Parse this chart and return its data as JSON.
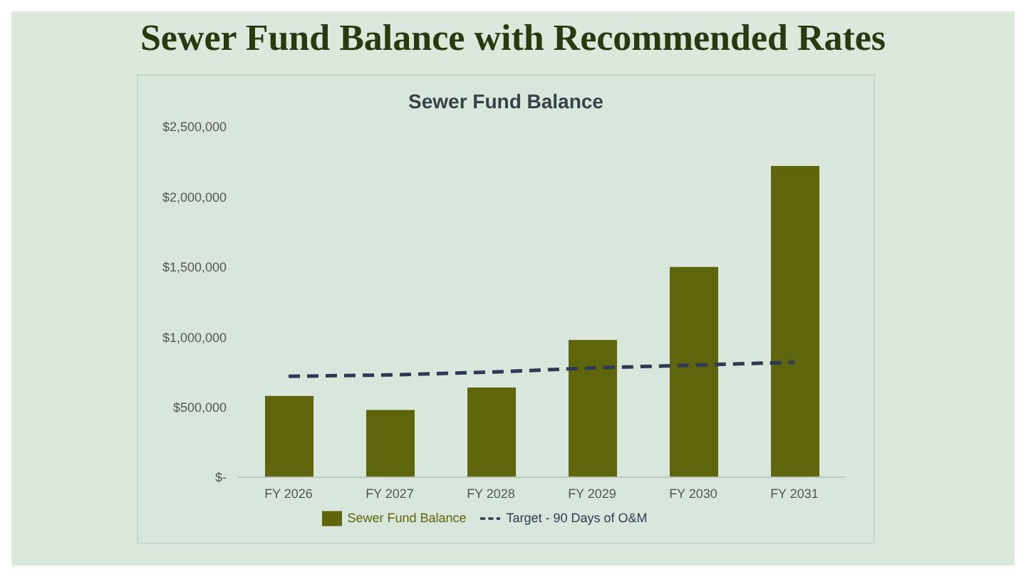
{
  "chart_data": {
    "type": "bar",
    "title": "Sewer Fund Balance with Recommended Rates",
    "subtitle": "Sewer Fund Balance",
    "categories": [
      "FY 2026",
      "FY 2027",
      "FY 2028",
      "FY 2029",
      "FY 2030",
      "FY 2031"
    ],
    "series": [
      {
        "name": "Sewer Fund Balance",
        "color": "#5e650a",
        "values": [
          580000,
          480000,
          640000,
          980000,
          1500000,
          2220000
        ]
      },
      {
        "name": "Target - 90 Days of O&M",
        "type": "line",
        "color": "#2e3a55",
        "line_style": "dashed",
        "marker": "none",
        "values": [
          720000,
          730000,
          750000,
          780000,
          800000,
          820000
        ]
      }
    ],
    "ylim": [
      0,
      2500000
    ],
    "yticks": [
      {
        "value": 0,
        "label": "$-"
      },
      {
        "value": 500000,
        "label": "$500,000"
      },
      {
        "value": 1000000,
        "label": "$1,000,000"
      },
      {
        "value": 1500000,
        "label": "$1,500,000"
      },
      {
        "value": 2000000,
        "label": "$2,000,000"
      },
      {
        "value": 2500000,
        "label": "$2,500,000"
      }
    ],
    "grid": false,
    "legend": "bottom"
  }
}
